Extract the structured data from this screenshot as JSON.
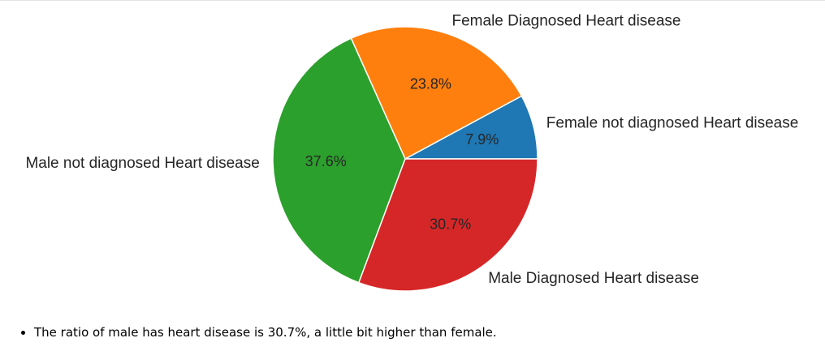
{
  "chart_data": {
    "type": "pie",
    "title": "",
    "categories": [
      "Female not diagnosed Heart disease",
      "Female Diagnosed Heart disease",
      "Male not diagnosed Heart disease",
      "Male Diagnosed Heart disease"
    ],
    "values": [
      7.9,
      23.8,
      37.6,
      30.7
    ],
    "percent_labels": [
      "7.9%",
      "23.8%",
      "37.6%",
      "30.7%"
    ],
    "colors": [
      "#1f77b4",
      "#ff7f0e",
      "#2ca02c",
      "#d62728"
    ],
    "start_angle_deg": 0,
    "direction": "counterclockwise",
    "legend": "none"
  },
  "notes": [
    "The ratio of male has heart disease is 30.7%, a little bit higher than female."
  ]
}
